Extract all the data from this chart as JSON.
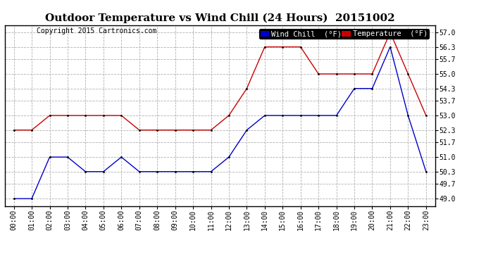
{
  "title": "Outdoor Temperature vs Wind Chill (24 Hours)  20151002",
  "copyright": "Copyright 2015 Cartronics.com",
  "background_color": "#ffffff",
  "plot_background": "#ffffff",
  "grid_color": "#b0b0b0",
  "x_labels": [
    "00:00",
    "01:00",
    "02:00",
    "03:00",
    "04:00",
    "05:00",
    "06:00",
    "07:00",
    "08:00",
    "09:00",
    "10:00",
    "11:00",
    "12:00",
    "13:00",
    "14:00",
    "15:00",
    "16:00",
    "17:00",
    "18:00",
    "19:00",
    "20:00",
    "21:00",
    "22:00",
    "23:00"
  ],
  "y_ticks": [
    49.0,
    49.7,
    50.3,
    51.0,
    51.7,
    52.3,
    53.0,
    53.7,
    54.3,
    55.0,
    55.7,
    56.3,
    57.0
  ],
  "ylim": [
    48.65,
    57.35
  ],
  "temperature": [
    52.3,
    52.3,
    53.0,
    53.0,
    53.0,
    53.0,
    53.0,
    52.3,
    52.3,
    52.3,
    52.3,
    52.3,
    53.0,
    54.3,
    56.3,
    56.3,
    56.3,
    55.0,
    55.0,
    55.0,
    55.0,
    57.0,
    55.0,
    53.0
  ],
  "wind_chill": [
    49.0,
    49.0,
    51.0,
    51.0,
    50.3,
    50.3,
    51.0,
    50.3,
    50.3,
    50.3,
    50.3,
    50.3,
    51.0,
    52.3,
    53.0,
    53.0,
    53.0,
    53.0,
    53.0,
    54.3,
    54.3,
    56.3,
    53.0,
    50.3
  ],
  "temp_color": "#cc0000",
  "wind_chill_color": "#0000cc",
  "legend_wind_chill_bg": "#0000cc",
  "legend_temp_bg": "#cc0000",
  "legend_wind_chill_text": "Wind Chill  (°F)",
  "legend_temp_text": "Temperature  (°F)",
  "title_fontsize": 11,
  "axis_fontsize": 7,
  "copyright_fontsize": 7,
  "legend_fontsize": 7.5
}
